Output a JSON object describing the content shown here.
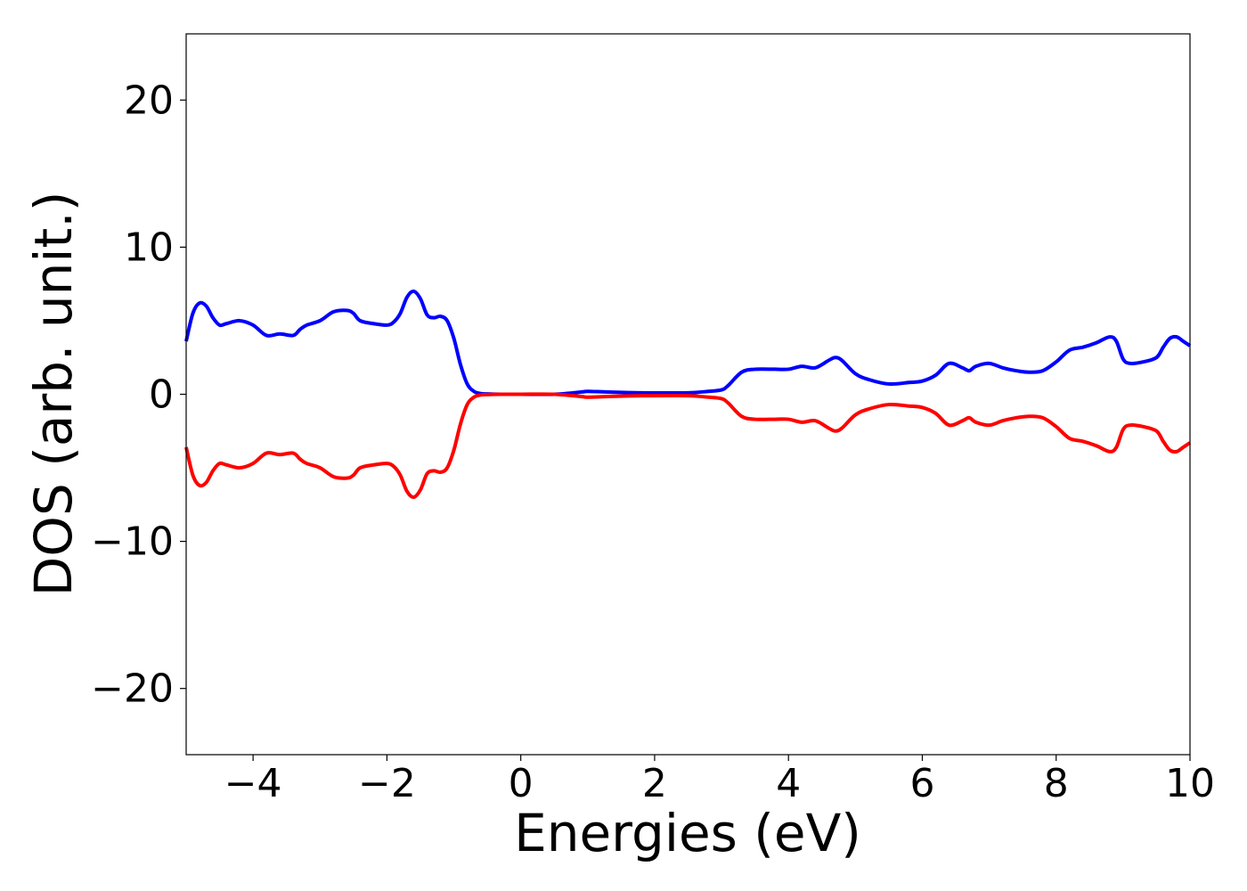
{
  "chart_data": {
    "type": "line",
    "title": "",
    "xlabel": "Energies (eV)",
    "ylabel": "DOS (arb. unit.)",
    "xlim": [
      -5,
      10
    ],
    "ylim": [
      -24.5,
      24.5
    ],
    "xticks": [
      -4,
      -2,
      0,
      2,
      4,
      6,
      8,
      10
    ],
    "xtick_labels": [
      "−4",
      "−2",
      "0",
      "2",
      "4",
      "6",
      "8",
      "10"
    ],
    "yticks": [
      -20,
      -10,
      0,
      10,
      20
    ],
    "ytick_labels": [
      "−20",
      "−10",
      "0",
      "10",
      "20"
    ],
    "grid": false,
    "legend": false,
    "series": [
      {
        "color": "#0000ff",
        "x": [
          -5.0,
          -4.9,
          -4.8,
          -4.7,
          -4.6,
          -4.5,
          -4.4,
          -4.2,
          -4.0,
          -3.8,
          -3.6,
          -3.4,
          -3.3,
          -3.2,
          -3.0,
          -2.8,
          -2.6,
          -2.5,
          -2.4,
          -2.2,
          -2.0,
          -1.9,
          -1.8,
          -1.7,
          -1.6,
          -1.5,
          -1.4,
          -1.3,
          -1.2,
          -1.1,
          -1.0,
          -0.9,
          -0.8,
          -0.7,
          -0.6,
          -0.5,
          -0.3,
          0.0,
          0.5,
          0.9,
          1.0,
          1.3,
          1.8,
          2.5,
          2.8,
          3.0,
          3.1,
          3.3,
          3.5,
          3.8,
          4.0,
          4.2,
          4.4,
          4.6,
          4.7,
          4.8,
          5.0,
          5.2,
          5.5,
          5.8,
          6.0,
          6.2,
          6.4,
          6.6,
          6.7,
          6.8,
          7.0,
          7.2,
          7.4,
          7.6,
          7.8,
          8.0,
          8.2,
          8.4,
          8.6,
          8.8,
          8.9,
          9.0,
          9.1,
          9.3,
          9.5,
          9.6,
          9.7,
          9.8,
          9.9,
          10.0
        ],
        "values": [
          3.6,
          5.5,
          6.2,
          6.0,
          5.2,
          4.7,
          4.8,
          5.0,
          4.7,
          4.0,
          4.1,
          4.0,
          4.4,
          4.7,
          5.0,
          5.6,
          5.7,
          5.5,
          5.0,
          4.8,
          4.7,
          4.9,
          5.5,
          6.6,
          7.0,
          6.5,
          5.4,
          5.2,
          5.3,
          5.0,
          3.8,
          2.0,
          0.7,
          0.2,
          0.05,
          0.02,
          0.0,
          0.0,
          0.0,
          0.15,
          0.2,
          0.15,
          0.1,
          0.1,
          0.2,
          0.3,
          0.6,
          1.5,
          1.7,
          1.7,
          1.7,
          1.9,
          1.8,
          2.3,
          2.5,
          2.3,
          1.4,
          1.0,
          0.7,
          0.8,
          0.9,
          1.3,
          2.1,
          1.8,
          1.6,
          1.9,
          2.1,
          1.8,
          1.6,
          1.5,
          1.6,
          2.2,
          3.0,
          3.2,
          3.5,
          3.9,
          3.6,
          2.4,
          2.1,
          2.2,
          2.5,
          3.2,
          3.8,
          3.9,
          3.6,
          3.3
        ]
      },
      {
        "color": "#ff0000",
        "x": [
          -5.0,
          -4.9,
          -4.8,
          -4.7,
          -4.6,
          -4.5,
          -4.4,
          -4.2,
          -4.0,
          -3.8,
          -3.6,
          -3.4,
          -3.3,
          -3.2,
          -3.0,
          -2.8,
          -2.6,
          -2.5,
          -2.4,
          -2.2,
          -2.0,
          -1.9,
          -1.8,
          -1.7,
          -1.6,
          -1.5,
          -1.4,
          -1.3,
          -1.2,
          -1.1,
          -1.0,
          -0.9,
          -0.8,
          -0.7,
          -0.6,
          -0.5,
          -0.3,
          0.0,
          0.5,
          0.9,
          1.0,
          1.3,
          1.8,
          2.5,
          2.8,
          3.0,
          3.1,
          3.3,
          3.5,
          3.8,
          4.0,
          4.2,
          4.4,
          4.6,
          4.7,
          4.8,
          5.0,
          5.2,
          5.5,
          5.8,
          6.0,
          6.2,
          6.4,
          6.6,
          6.7,
          6.8,
          7.0,
          7.2,
          7.4,
          7.6,
          7.8,
          8.0,
          8.2,
          8.4,
          8.6,
          8.8,
          8.9,
          9.0,
          9.1,
          9.3,
          9.5,
          9.6,
          9.7,
          9.8,
          9.9,
          10.0
        ],
        "values": [
          -3.6,
          -5.5,
          -6.2,
          -6.0,
          -5.2,
          -4.7,
          -4.8,
          -5.0,
          -4.7,
          -4.0,
          -4.1,
          -4.0,
          -4.4,
          -4.7,
          -5.0,
          -5.6,
          -5.7,
          -5.5,
          -5.0,
          -4.8,
          -4.7,
          -4.9,
          -5.5,
          -6.6,
          -7.0,
          -6.5,
          -5.4,
          -5.2,
          -5.3,
          -5.0,
          -3.8,
          -2.0,
          -0.7,
          -0.2,
          -0.05,
          -0.02,
          0.0,
          0.0,
          0.0,
          -0.15,
          -0.2,
          -0.15,
          -0.1,
          -0.1,
          -0.2,
          -0.3,
          -0.6,
          -1.5,
          -1.7,
          -1.7,
          -1.7,
          -1.9,
          -1.8,
          -2.3,
          -2.5,
          -2.3,
          -1.4,
          -1.0,
          -0.7,
          -0.8,
          -0.9,
          -1.3,
          -2.1,
          -1.8,
          -1.6,
          -1.9,
          -2.1,
          -1.8,
          -1.6,
          -1.5,
          -1.6,
          -2.2,
          -3.0,
          -3.2,
          -3.5,
          -3.9,
          -3.6,
          -2.4,
          -2.1,
          -2.2,
          -2.5,
          -3.2,
          -3.8,
          -3.9,
          -3.6,
          -3.3
        ]
      }
    ]
  }
}
